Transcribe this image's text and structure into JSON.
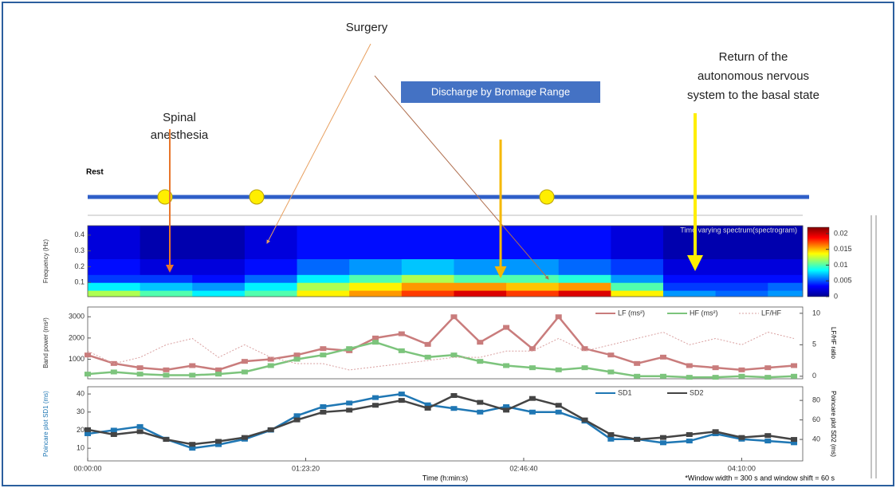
{
  "annotations": {
    "surgery": "Surgery",
    "spinal": [
      "Spinal",
      "anesthesia"
    ],
    "discharge": "Discharge by Bromage Range",
    "return": [
      "Return of the",
      "autonomous nervous",
      "system to the basal state"
    ],
    "rest": "Rest"
  },
  "chart_data": [
    {
      "type": "heatmap",
      "title": "Time varying spectrum(spectrogram)",
      "y_label": "Frequency (Hz)",
      "xlim": [
        0,
        16400
      ],
      "ylim": [
        0.01,
        0.46
      ],
      "yticks": [
        0.1,
        0.2,
        0.3,
        0.4
      ],
      "x_bins": [
        0,
        1200,
        2400,
        3600,
        4800,
        6000,
        7200,
        8400,
        9600,
        10800,
        12000,
        13200,
        14400,
        15600,
        16400
      ],
      "y_bins": [
        0.01,
        0.05,
        0.1,
        0.15,
        0.25,
        0.46
      ],
      "values": [
        [
          0.012,
          0.01,
          0.008,
          0.01,
          0.014,
          0.016,
          0.018,
          0.02,
          0.018,
          0.02,
          0.014,
          0.006,
          0.005,
          0.006
        ],
        [
          0.008,
          0.007,
          0.006,
          0.008,
          0.012,
          0.014,
          0.016,
          0.016,
          0.015,
          0.016,
          0.01,
          0.004,
          0.004,
          0.005
        ],
        [
          0.004,
          0.004,
          0.003,
          0.005,
          0.008,
          0.01,
          0.012,
          0.01,
          0.01,
          0.009,
          0.006,
          0.003,
          0.003,
          0.003
        ],
        [
          0.003,
          0.002,
          0.002,
          0.003,
          0.005,
          0.006,
          0.007,
          0.006,
          0.006,
          0.005,
          0.004,
          0.002,
          0.002,
          0.002
        ],
        [
          0.002,
          0.001,
          0.001,
          0.002,
          0.003,
          0.003,
          0.003,
          0.003,
          0.003,
          0.003,
          0.002,
          0.001,
          0.001,
          0.001
        ]
      ],
      "colorbar": {
        "ylim": [
          0,
          0.022
        ],
        "yticks": [
          0,
          0.005,
          0.01,
          0.015,
          0.02
        ]
      }
    },
    {
      "type": "line",
      "y_label": "Band power (ms²)",
      "y2_label": "LF/HF ratio",
      "xlim": [
        0,
        16400
      ],
      "ylim": [
        80,
        3460
      ],
      "yticks": [
        1000,
        2000,
        3000
      ],
      "y2lim": [
        -0.4,
        11
      ],
      "y2ticks": [
        0,
        5,
        10
      ],
      "x": [
        0,
        600,
        1200,
        1800,
        2400,
        3000,
        3600,
        4200,
        4800,
        5400,
        6000,
        6600,
        7200,
        7800,
        8400,
        9000,
        9600,
        10200,
        10800,
        11400,
        12000,
        12600,
        13200,
        13800,
        14400,
        15000,
        15600,
        16200
      ],
      "series": [
        {
          "name": "LF (ms²)",
          "color": "#c97c7c",
          "marker": true,
          "values": [
            1200,
            800,
            600,
            500,
            700,
            500,
            900,
            1000,
            1200,
            1500,
            1400,
            2000,
            2200,
            1700,
            3000,
            1800,
            2500,
            1500,
            3000,
            1500,
            1200,
            800,
            1100,
            700,
            600,
            500,
            600,
            700
          ]
        },
        {
          "name": "HF (ms²)",
          "color": "#7cc47c",
          "marker": true,
          "values": [
            300,
            400,
            300,
            250,
            250,
            300,
            400,
            700,
            1000,
            1200,
            1500,
            1800,
            1400,
            1100,
            1200,
            900,
            700,
            600,
            500,
            600,
            400,
            200,
            200,
            150,
            150,
            200,
            150,
            200
          ]
        },
        {
          "name": "LF/HF",
          "color": "#d9a0a0",
          "dash": true,
          "axis": "y2",
          "values": [
            4,
            2,
            3,
            5,
            6,
            3,
            5,
            3,
            2,
            2,
            1,
            1.5,
            2,
            2.5,
            3,
            3,
            4,
            4,
            6,
            4,
            5,
            6,
            7,
            5,
            6,
            5,
            7,
            6
          ]
        }
      ]
    },
    {
      "type": "line",
      "y_label": "Poincare plot SD1 (ms)",
      "y2_label": "Poincare plot SD2 (ms)",
      "x_label": "Time (h:min:s)",
      "note": "*Window width = 300 s and window shift = 60 s",
      "xlim": [
        0,
        16400
      ],
      "xticks": [
        {
          "value": 0,
          "label": "00:00:00"
        },
        {
          "value": 5000,
          "label": "01:23:20"
        },
        {
          "value": 10000,
          "label": "02:46:40"
        },
        {
          "value": 15000,
          "label": "04:10:00"
        }
      ],
      "ylim": [
        3,
        44
      ],
      "yticks": [
        10,
        20,
        30,
        40
      ],
      "y2lim": [
        18,
        94
      ],
      "y2ticks": [
        40,
        60,
        80
      ],
      "x": [
        0,
        600,
        1200,
        1800,
        2400,
        3000,
        3600,
        4200,
        4800,
        5400,
        6000,
        6600,
        7200,
        7800,
        8400,
        9000,
        9600,
        10200,
        10800,
        11400,
        12000,
        12600,
        13200,
        13800,
        14400,
        15000,
        15600,
        16200
      ],
      "series": [
        {
          "name": "SD1",
          "color": "#1f77b4",
          "marker": true,
          "values": [
            18,
            20,
            22,
            15,
            10,
            12,
            15,
            20,
            28,
            33,
            35,
            38,
            40,
            34,
            32,
            30,
            33,
            30,
            30,
            25,
            15,
            15,
            13,
            14,
            18,
            15,
            14,
            13
          ]
        },
        {
          "name": "SD2",
          "color": "#444444",
          "marker": true,
          "axis": "y2",
          "values": [
            50,
            45,
            48,
            40,
            35,
            38,
            42,
            50,
            60,
            68,
            70,
            75,
            80,
            72,
            85,
            78,
            70,
            82,
            75,
            60,
            45,
            40,
            42,
            45,
            48,
            42,
            44,
            40
          ]
        }
      ]
    }
  ]
}
